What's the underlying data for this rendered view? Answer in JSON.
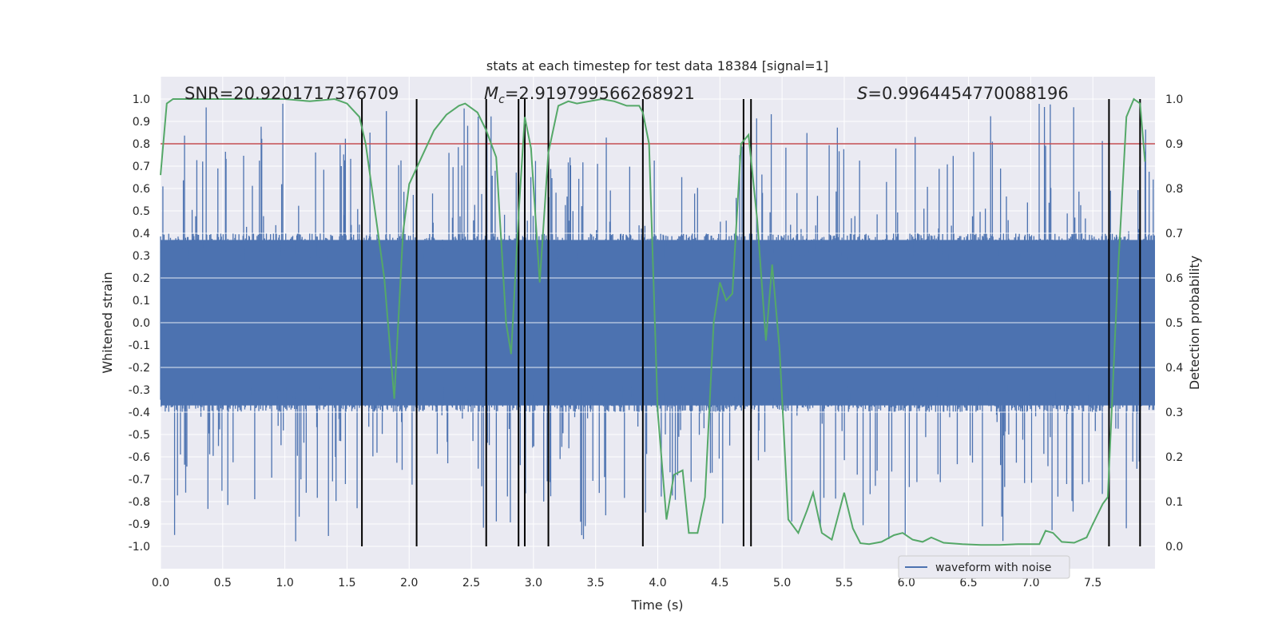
{
  "chart_data": {
    "type": "line",
    "title": "stats at each timestep for test data 18384 [signal=1]",
    "xlabel": "Time (s)",
    "ylabel": "Whitened strain",
    "y2label": "Detection probability",
    "xlim": [
      0.0,
      8.0
    ],
    "ylim": [
      -1.1,
      1.1
    ],
    "y2lim": [
      -0.05,
      1.05
    ],
    "xticks": [
      "0.0",
      "0.5",
      "1.0",
      "1.5",
      "2.0",
      "2.5",
      "3.0",
      "3.5",
      "4.0",
      "4.5",
      "5.0",
      "5.5",
      "6.0",
      "6.5",
      "7.0",
      "7.5"
    ],
    "yticks": [
      "1.0",
      "0.9",
      "0.8",
      "0.7",
      "0.6",
      "0.5",
      "0.4",
      "0.3",
      "0.2",
      "0.1",
      "0.0",
      "-0.1",
      "-0.2",
      "-0.3",
      "-0.4",
      "-0.5",
      "-0.6",
      "-0.7",
      "-0.8",
      "-0.9",
      "-1.0"
    ],
    "y2ticks": [
      "1.0",
      "0.9",
      "0.8",
      "0.7",
      "0.6",
      "0.5",
      "0.4",
      "0.3",
      "0.2",
      "0.1",
      "0.0"
    ],
    "grid": true,
    "legend": {
      "entries": [
        "waveform with noise"
      ],
      "placement": "lower-center-right"
    },
    "annotations": {
      "snr": "SNR=20.9201717376709",
      "mc_symbol": "M",
      "mc_sub": "c",
      "mc_value": "=2.919799566268921",
      "s_symbol": "S",
      "s_value": "=0.9964454770088196"
    },
    "threshold": {
      "value": 0.8,
      "axis": "left",
      "color": "#c44e52"
    },
    "waveform": {
      "name": "waveform with noise",
      "color": "#4c72b0",
      "typical_envelope": 0.4,
      "spike_max": 0.98,
      "t_end": 8.0
    },
    "detection_probability": {
      "color": "#55a868",
      "x": [
        0.0,
        0.05,
        0.1,
        0.2,
        0.4,
        0.7,
        1.0,
        1.2,
        1.4,
        1.5,
        1.6,
        1.65,
        1.7,
        1.8,
        1.88,
        1.95,
        2.0,
        2.1,
        2.2,
        2.3,
        2.4,
        2.45,
        2.55,
        2.62,
        2.7,
        2.78,
        2.82,
        2.88,
        2.93,
        2.98,
        3.05,
        3.12,
        3.2,
        3.28,
        3.35,
        3.45,
        3.55,
        3.65,
        3.75,
        3.85,
        3.88,
        3.93,
        4.0,
        4.07,
        4.13,
        4.2,
        4.25,
        4.32,
        4.38,
        4.45,
        4.5,
        4.55,
        4.6,
        4.67,
        4.73,
        4.8,
        4.87,
        4.92,
        4.98,
        5.05,
        5.13,
        5.2,
        5.25,
        5.32,
        5.4,
        5.5,
        5.57,
        5.63,
        5.7,
        5.8,
        5.9,
        5.97,
        6.05,
        6.13,
        6.2,
        6.3,
        6.45,
        6.6,
        6.75,
        6.9,
        7.0,
        7.07,
        7.12,
        7.18,
        7.25,
        7.35,
        7.45,
        7.5,
        7.58,
        7.62,
        7.7,
        7.77,
        7.83,
        7.88,
        7.92
      ],
      "y": [
        0.83,
        0.99,
        1.0,
        1.0,
        1.0,
        1.0,
        1.0,
        0.995,
        1.0,
        0.99,
        0.96,
        0.9,
        0.8,
        0.6,
        0.33,
        0.7,
        0.81,
        0.87,
        0.93,
        0.965,
        0.985,
        0.99,
        0.97,
        0.93,
        0.87,
        0.5,
        0.43,
        0.74,
        0.96,
        0.89,
        0.59,
        0.88,
        0.985,
        0.995,
        0.99,
        0.995,
        1.0,
        0.995,
        0.985,
        0.985,
        0.97,
        0.9,
        0.3,
        0.06,
        0.16,
        0.17,
        0.03,
        0.03,
        0.11,
        0.5,
        0.59,
        0.55,
        0.565,
        0.9,
        0.92,
        0.73,
        0.46,
        0.63,
        0.44,
        0.06,
        0.03,
        0.08,
        0.12,
        0.03,
        0.015,
        0.12,
        0.04,
        0.007,
        0.005,
        0.01,
        0.025,
        0.03,
        0.015,
        0.01,
        0.02,
        0.008,
        0.005,
        0.003,
        0.003,
        0.005,
        0.005,
        0.005,
        0.035,
        0.03,
        0.01,
        0.008,
        0.02,
        0.05,
        0.095,
        0.11,
        0.6,
        0.96,
        1.0,
        0.99,
        0.86
      ]
    },
    "vlines": [
      1.62,
      2.06,
      2.62,
      2.88,
      2.93,
      3.12,
      3.88,
      4.69,
      4.75,
      7.63,
      7.88
    ]
  }
}
